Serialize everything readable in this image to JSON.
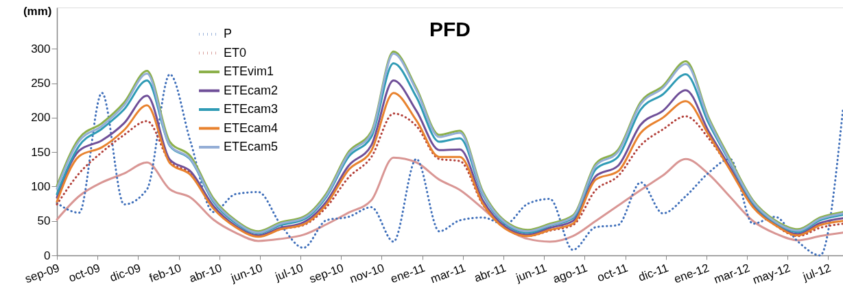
{
  "chart_data": {
    "type": "line",
    "title": "PFD",
    "ylabel": "(mm)",
    "x": [
      "2009-09",
      "2009-10",
      "2009-11",
      "2009-12",
      "2010-01",
      "2010-02",
      "2010-03",
      "2010-04",
      "2010-05",
      "2010-06",
      "2010-07",
      "2010-08",
      "2010-09",
      "2010-10",
      "2010-11",
      "2010-12",
      "2011-01",
      "2011-02",
      "2011-03",
      "2011-04",
      "2011-05",
      "2011-06",
      "2011-07",
      "2011-08",
      "2011-09",
      "2011-10",
      "2011-11",
      "2011-12",
      "2012-01",
      "2012-02",
      "2012-03",
      "2012-04",
      "2012-05",
      "2012-06",
      "2012-07",
      "2012-08"
    ],
    "series": [
      {
        "name": "P",
        "color": "#3f6fba",
        "line_style": "dotted",
        "values": [
          76,
          62,
          236,
          74,
          96,
          263,
          165,
          63,
          89,
          92,
          45,
          11,
          51,
          56,
          70,
          20,
          140,
          35,
          51,
          55,
          45,
          75,
          82,
          8,
          41,
          44,
          106,
          61,
          86,
          120,
          140,
          46,
          56,
          20,
          0,
          213
        ]
      },
      {
        "name": "ET0",
        "color": "#b3403a",
        "line_style": "dotted",
        "values": [
          74,
          119,
          150,
          175,
          195,
          136,
          119,
          70,
          42,
          28,
          38,
          44,
          70,
          113,
          143,
          206,
          188,
          140,
          137,
          74,
          40,
          28,
          36,
          44,
          95,
          115,
          160,
          183,
          202,
          170,
          125,
          72,
          44,
          28,
          40,
          46
        ]
      },
      {
        "name": "ETEvim1",
        "color": "#8cb04a",
        "line_style": "solid",
        "values": [
          101,
          170,
          192,
          222,
          268,
          165,
          144,
          83,
          51,
          35,
          48,
          56,
          90,
          150,
          180,
          296,
          243,
          175,
          181,
          93,
          50,
          37,
          46,
          58,
          133,
          153,
          223,
          246,
          282,
          200,
          140,
          80,
          51,
          38,
          55,
          63
        ]
      },
      {
        "name": "ETEcam2",
        "color": "#6f4f98",
        "line_style": "solid",
        "values": [
          84,
          152,
          167,
          192,
          232,
          139,
          122,
          72,
          43,
          29,
          40,
          48,
          78,
          130,
          160,
          254,
          210,
          153,
          154,
          80,
          42,
          30,
          40,
          50,
          115,
          130,
          190,
          210,
          240,
          180,
          128,
          72,
          45,
          31,
          47,
          54
        ]
      },
      {
        "name": "ETEcam3",
        "color": "#2f9bb5",
        "line_style": "solid",
        "values": [
          89,
          159,
          184,
          212,
          254,
          159,
          139,
          78,
          47,
          32,
          44,
          52,
          85,
          143,
          172,
          279,
          230,
          165,
          170,
          88,
          46,
          33,
          43,
          54,
          125,
          143,
          212,
          234,
          263,
          192,
          135,
          76,
          48,
          34,
          51,
          59
        ]
      },
      {
        "name": "ETEcam4",
        "color": "#e8822e",
        "line_style": "solid",
        "values": [
          78,
          144,
          157,
          182,
          218,
          134,
          117,
          68,
          41,
          27,
          38,
          45,
          74,
          124,
          152,
          236,
          196,
          143,
          143,
          75,
          39,
          28,
          37,
          46,
          110,
          122,
          178,
          200,
          224,
          175,
          124,
          70,
          44,
          29,
          44,
          50
        ]
      },
      {
        "name": "ETEcam5",
        "color": "#94aed6",
        "line_style": "solid",
        "values": [
          97,
          166,
          188,
          218,
          264,
          160,
          140,
          80,
          49,
          33,
          46,
          54,
          87,
          147,
          177,
          293,
          240,
          172,
          178,
          90,
          48,
          35,
          44,
          56,
          130,
          150,
          220,
          243,
          278,
          197,
          137,
          78,
          49,
          36,
          53,
          61
        ]
      },
      {
        "color": "#d99694",
        "line_style": "solid",
        "values": [
          52,
          86,
          106,
          119,
          135,
          96,
          84,
          52,
          33,
          21,
          24,
          30,
          45,
          62,
          80,
          142,
          135,
          110,
          95,
          68,
          40,
          24,
          20,
          28,
          50,
          72,
          95,
          116,
          140,
          118,
          85,
          50,
          32,
          22,
          28,
          33
        ]
      }
    ],
    "xlim": [
      "2009-09-01",
      "2012-08-01"
    ],
    "xticks": [
      {
        "value": "2009-09-01",
        "label": "sep-09"
      },
      {
        "value": "2009-10-26",
        "label": "oct-09"
      },
      {
        "value": "2009-12-20",
        "label": "dic-09"
      },
      {
        "value": "2010-02-13",
        "label": "feb-10"
      },
      {
        "value": "2010-04-09",
        "label": "abr-10"
      },
      {
        "value": "2010-06-03",
        "label": "jun-10"
      },
      {
        "value": "2010-07-28",
        "label": "jul-10"
      },
      {
        "value": "2010-09-21",
        "label": "sep-10"
      },
      {
        "value": "2010-11-15",
        "label": "nov-10"
      },
      {
        "value": "2011-01-09",
        "label": "ene-11"
      },
      {
        "value": "2011-03-05",
        "label": "mar-11"
      },
      {
        "value": "2011-04-29",
        "label": "abr-11"
      },
      {
        "value": "2011-06-23",
        "label": "jun-11"
      },
      {
        "value": "2011-08-17",
        "label": "ago-11"
      },
      {
        "value": "2011-10-11",
        "label": "oct-11"
      },
      {
        "value": "2011-12-05",
        "label": "dic-11"
      },
      {
        "value": "2012-01-29",
        "label": "ene-12"
      },
      {
        "value": "2012-03-24",
        "label": "mar-12"
      },
      {
        "value": "2012-05-18",
        "label": "may-12"
      },
      {
        "value": "2012-07-12",
        "label": "jul-12"
      }
    ],
    "ylim": [
      0,
      360
    ],
    "yticks": [
      0,
      50,
      100,
      150,
      200,
      250,
      300
    ],
    "grid": false,
    "legend": "top left",
    "marker": "none"
  }
}
